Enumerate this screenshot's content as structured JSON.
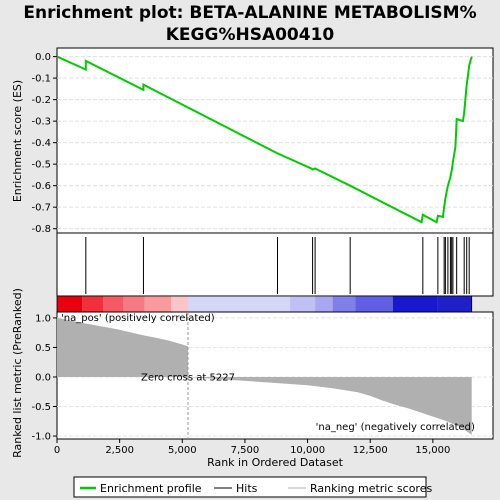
{
  "chart_data": {
    "type": "line",
    "title_lines": [
      "Enrichment plot: BETA-ALANINE METABOLISM%",
      "KEGG%HSA00410"
    ],
    "es_panel": {
      "ylabel": "Enrichment score (ES)",
      "ylim": [
        -0.82,
        0.04
      ],
      "yticks": [
        0.0,
        -0.1,
        -0.2,
        -0.3,
        -0.4,
        -0.5,
        -0.6,
        -0.7,
        -0.8
      ],
      "ytick_labels": [
        "0.0",
        "-0.1",
        "-0.2",
        "-0.3",
        "-0.4",
        "-0.5",
        "-0.6",
        "-0.7",
        "-0.8"
      ],
      "grid": true,
      "line_color": "#00cc00",
      "points": [
        [
          0,
          0.0
        ],
        [
          1150,
          -0.06
        ],
        [
          1150,
          -0.02
        ],
        [
          3450,
          -0.155
        ],
        [
          3450,
          -0.13
        ],
        [
          8800,
          -0.45
        ],
        [
          10150,
          -0.52
        ],
        [
          10200,
          -0.525
        ],
        [
          10300,
          -0.52
        ],
        [
          11700,
          -0.6
        ],
        [
          14550,
          -0.77
        ],
        [
          14600,
          -0.735
        ],
        [
          15150,
          -0.77
        ],
        [
          15200,
          -0.74
        ],
        [
          15400,
          -0.745
        ],
        [
          15450,
          -0.7
        ],
        [
          15500,
          -0.66
        ],
        [
          15550,
          -0.63
        ],
        [
          15600,
          -0.6
        ],
        [
          15700,
          -0.56
        ],
        [
          15750,
          -0.53
        ],
        [
          15800,
          -0.49
        ],
        [
          15900,
          -0.42
        ],
        [
          15950,
          -0.29
        ],
        [
          16200,
          -0.3
        ],
        [
          16250,
          -0.26
        ],
        [
          16350,
          -0.13
        ],
        [
          16400,
          -0.09
        ],
        [
          16450,
          -0.04
        ],
        [
          16550,
          0.0
        ]
      ]
    },
    "hits_panel": {
      "hit_color": "#000000",
      "hits": [
        1150,
        3450,
        8800,
        10200,
        10300,
        11700,
        14600,
        15200,
        15450,
        15500,
        15600,
        15700,
        15750,
        15800,
        15950,
        16250,
        16350,
        16450
      ]
    },
    "color_bar": {
      "segments": [
        {
          "to": 1000,
          "color": "#e8000e"
        },
        {
          "to": 1850,
          "color": "#f0303c"
        },
        {
          "to": 2650,
          "color": "#f55a64"
        },
        {
          "to": 3500,
          "color": "#f77a82"
        },
        {
          "to": 4550,
          "color": "#f99aa0"
        },
        {
          "to": 5227,
          "color": "#fbc4c8"
        },
        {
          "to": 9300,
          "color": "#d6d6f8"
        },
        {
          "to": 10300,
          "color": "#c0c0f4"
        },
        {
          "to": 11000,
          "color": "#a8a8f0"
        },
        {
          "to": 11900,
          "color": "#8080ea"
        },
        {
          "to": 13400,
          "color": "#6060e4"
        },
        {
          "to": 15200,
          "color": "#1818cc"
        },
        {
          "to": 16550,
          "color": "#2020c8"
        }
      ]
    },
    "metric_panel": {
      "ylabel": "Ranked list metric (PreRanked)",
      "xlabel": "Rank in Ordered Dataset",
      "ylim": [
        -1.05,
        1.1
      ],
      "yticks": [
        1.0,
        0.5,
        0.0,
        -0.5,
        -1.0
      ],
      "ytick_labels": [
        "1.0",
        "0.5",
        "0.0",
        "-0.5",
        "-1.0"
      ],
      "xlim": [
        0,
        17400
      ],
      "xticks": [
        0,
        2500,
        5000,
        7500,
        10000,
        12500,
        15000
      ],
      "xtick_labels": [
        "0",
        "2,500",
        "5,000",
        "7,500",
        "10,000",
        "12,500",
        "15,000"
      ],
      "fill_color": "#b0b0b0",
      "points": [
        [
          0,
          1.0
        ],
        [
          400,
          0.97
        ],
        [
          800,
          0.93
        ],
        [
          1200,
          0.9
        ],
        [
          1600,
          0.87
        ],
        [
          2000,
          0.84
        ],
        [
          2500,
          0.8
        ],
        [
          3000,
          0.75
        ],
        [
          3500,
          0.7
        ],
        [
          4000,
          0.66
        ],
        [
          4500,
          0.61
        ],
        [
          5000,
          0.55
        ],
        [
          5227,
          0.52
        ],
        [
          5227,
          0.0
        ],
        [
          6500,
          -0.04
        ],
        [
          8000,
          -0.08
        ],
        [
          9000,
          -0.11
        ],
        [
          10000,
          -0.14
        ],
        [
          11000,
          -0.19
        ],
        [
          12000,
          -0.26
        ],
        [
          12500,
          -0.32
        ],
        [
          13000,
          -0.4
        ],
        [
          13500,
          -0.47
        ],
        [
          14000,
          -0.53
        ],
        [
          14500,
          -0.6
        ],
        [
          15000,
          -0.67
        ],
        [
          15500,
          -0.74
        ],
        [
          16000,
          -0.83
        ],
        [
          16350,
          -0.92
        ],
        [
          16550,
          -0.98
        ],
        [
          16550,
          0.0
        ]
      ],
      "zero_cross": 5227,
      "zero_cross_label": "Zero cross at 5227",
      "pos_label": "'na_pos' (positively correlated)",
      "neg_label": "'na_neg' (negatively correlated)",
      "pos_color": "#cc0000",
      "neg_color": "#0000cc"
    },
    "legend": [
      {
        "label": "Enrichment profile",
        "color": "#00cc00",
        "kind": "line-thick"
      },
      {
        "label": "Hits",
        "color": "#000000",
        "kind": "line-thin"
      },
      {
        "label": "Ranking metric scores",
        "color": "#b0b0b0",
        "kind": "line-thin"
      }
    ]
  }
}
